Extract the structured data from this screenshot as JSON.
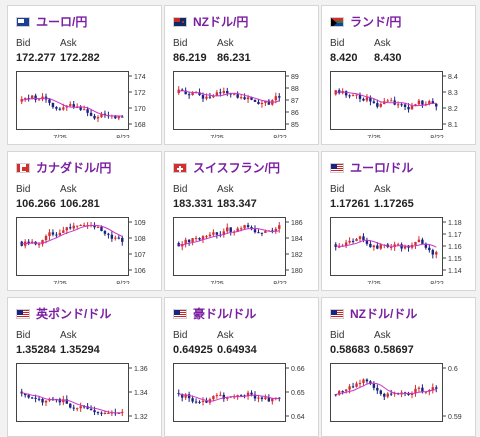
{
  "labels": {
    "bid": "Bid",
    "ask": "Ask"
  },
  "colors": {
    "title": "#7b1fa2",
    "up": "#d32f2f",
    "down": "#1a237e",
    "ma": "#cc33cc"
  },
  "cards": [
    {
      "name": "eurjpy",
      "flag": "eu-flag-icon",
      "title": "ユーロ/円",
      "bid": "172.277",
      "ask": "172.282",
      "ticks": [
        "174",
        "172",
        "170",
        "168"
      ],
      "xticks": [
        "7/25",
        "8/22"
      ]
    },
    {
      "name": "nzdjpy",
      "flag": "nz-flag-icon",
      "title": "NZドル/円",
      "bid": "86.219",
      "ask": "86.231",
      "ticks": [
        "89",
        "88",
        "87",
        "86",
        "85"
      ],
      "xticks": [
        "7/25",
        "8/22"
      ]
    },
    {
      "name": "zarjpy",
      "flag": "za-flag-icon",
      "title": "ランド/円",
      "bid": "8.420",
      "ask": "8.430",
      "ticks": [
        "8.4",
        "8.3",
        "8.2",
        "8.1"
      ],
      "xticks": [
        "7/25",
        "8/22"
      ]
    },
    {
      "name": "cadjpy",
      "flag": "ca-flag-icon",
      "title": "カナダドル/円",
      "bid": "106.266",
      "ask": "106.281",
      "ticks": [
        "109",
        "108",
        "107",
        "106"
      ],
      "xticks": [
        "7/25",
        "8/22"
      ]
    },
    {
      "name": "chfjpy",
      "flag": "ch-flag-icon",
      "title": "スイスフラン/円",
      "bid": "183.331",
      "ask": "183.347",
      "ticks": [
        "186",
        "184",
        "182",
        "180"
      ],
      "xticks": [
        "7/25",
        "8/22"
      ]
    },
    {
      "name": "eurusd",
      "flag": "us-flag-icon",
      "title": "ユーロ/ドル",
      "bid": "1.17261",
      "ask": "1.17265",
      "ticks": [
        "1.18",
        "1.17",
        "1.16",
        "1.15",
        "1.14"
      ],
      "xticks": [
        "7/25",
        "8/22"
      ]
    },
    {
      "name": "gbpusd",
      "flag": "us-flag-icon",
      "title": "英ポンド/ドル",
      "bid": "1.35284",
      "ask": "1.35294",
      "ticks": [
        "1.36",
        "1.34",
        "1.32"
      ],
      "xticks": []
    },
    {
      "name": "audusd",
      "flag": "us-flag-icon",
      "title": "豪ドル/ドル",
      "bid": "0.64925",
      "ask": "0.64934",
      "ticks": [
        "0.66",
        "0.65",
        "0.64"
      ],
      "xticks": []
    },
    {
      "name": "nzdusd",
      "flag": "us-flag-icon",
      "title": "NZドル/ドル",
      "bid": "0.58683",
      "ask": "0.58697",
      "ticks": [
        "0.6",
        "0.59"
      ],
      "xticks": []
    }
  ]
}
